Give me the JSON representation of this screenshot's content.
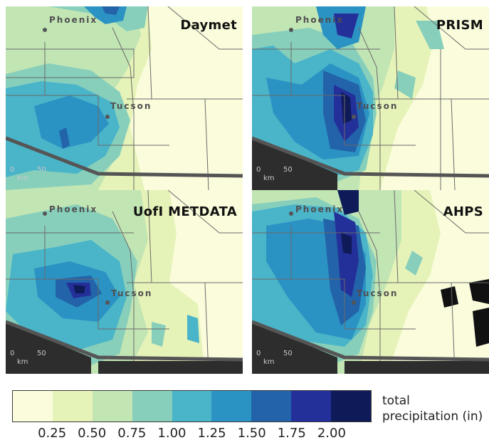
{
  "panels": [
    {
      "title": "Daymet",
      "cities": [
        "Phoenix",
        "Tucson"
      ],
      "scale": {
        "zero": "0",
        "fifty": "50",
        "unit": "km"
      }
    },
    {
      "title": "PRISM",
      "cities": [
        "Phoenix",
        "Tucson"
      ],
      "scale": {
        "zero": "0",
        "fifty": "50",
        "unit": "km"
      }
    },
    {
      "title": "UofI METDATA",
      "cities": [
        "Phoenix",
        "Tucson"
      ],
      "scale": {
        "zero": "0",
        "fifty": "50",
        "unit": "km"
      }
    },
    {
      "title": "AHPS",
      "cities": [
        "Phoenix",
        "Tucson"
      ],
      "scale": {
        "zero": "0",
        "fifty": "50",
        "unit": "km"
      }
    }
  ],
  "legend": {
    "title_line1": "total",
    "title_line2": "precipitation (in)",
    "colors": [
      "#fbfcdc",
      "#e6f3b8",
      "#c2e5b4",
      "#87cfbb",
      "#4ab4c9",
      "#2b93c3",
      "#2363a9",
      "#24309a",
      "#0f1a58"
    ],
    "ticks": [
      "0.25",
      "0.50",
      "0.75",
      "1.00",
      "1.25",
      "1.50",
      "1.75",
      "2.00"
    ]
  }
}
